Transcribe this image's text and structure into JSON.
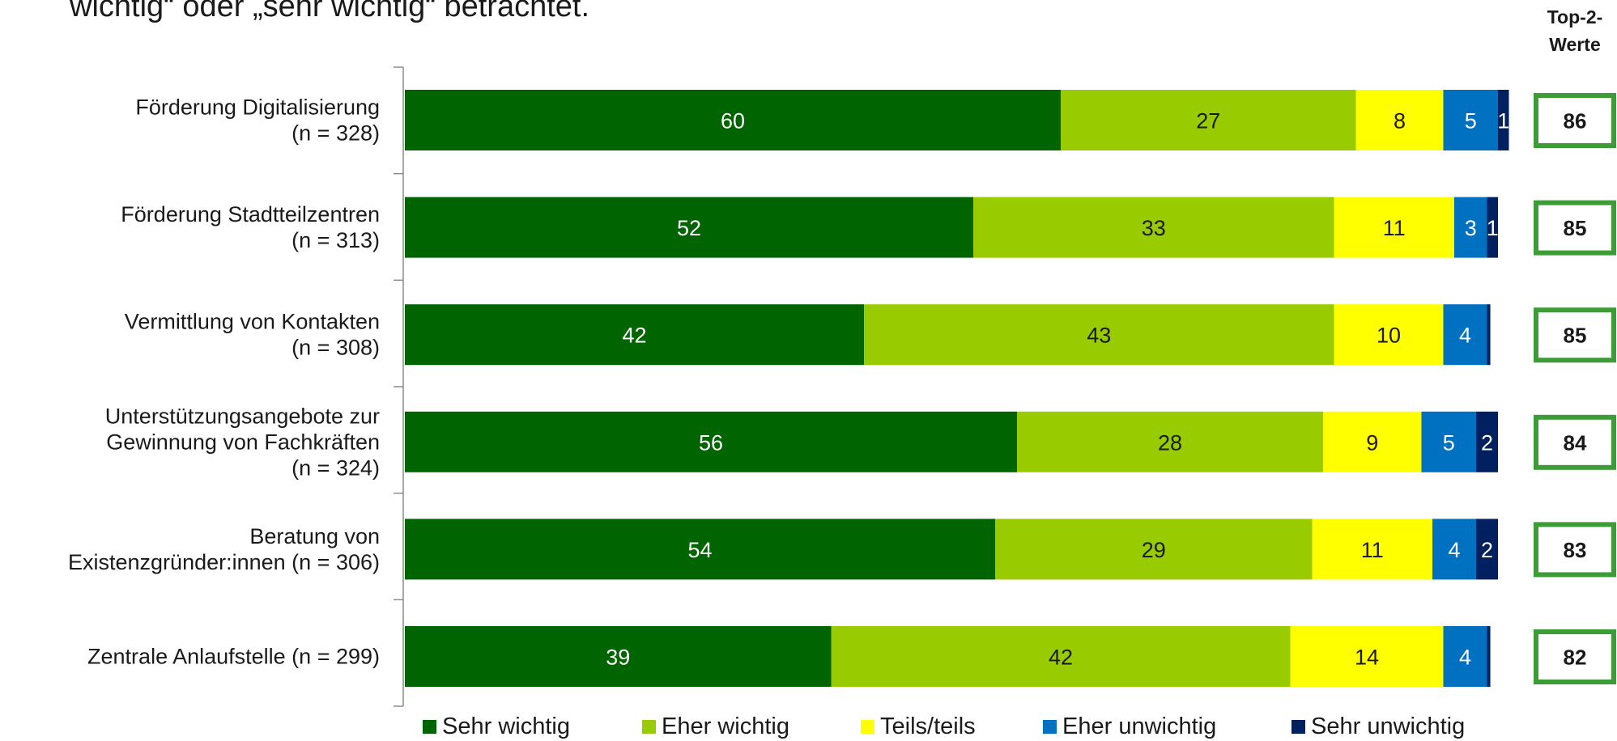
{
  "title": "wichtig“ oder „sehr wichtig“ betrachtet.",
  "top2_header": [
    "Top-2-",
    "Werte"
  ],
  "chart_data": {
    "type": "bar",
    "orientation": "horizontal",
    "stacked": true,
    "xlim": [
      0,
      100
    ],
    "categories": [
      [
        "Förderung Digitalisierung",
        "(n = 328)"
      ],
      [
        "Förderung Stadtteilzentren",
        "(n = 313)"
      ],
      [
        "Vermittlung von Kontakten",
        "(n = 308)"
      ],
      [
        "Unterstützungsangebote zur",
        "Gewinnung von Fachkräften",
        "(n = 324)"
      ],
      [
        "Beratung von",
        "Existenzgründer:innen  (n = 306)"
      ],
      [
        "Zentrale Anlaufstelle (n = 299)"
      ]
    ],
    "series": [
      {
        "name": "Sehr wichtig",
        "color": "#006400",
        "label_color": "#ffffff",
        "values": [
          60,
          52,
          42,
          56,
          54,
          39
        ]
      },
      {
        "name": "Eher wichtig",
        "color": "#99cc00",
        "label_color": "#1a1a1a",
        "values": [
          27,
          33,
          43,
          28,
          29,
          42
        ]
      },
      {
        "name": "Teils/teils",
        "color": "#ffff00",
        "label_color": "#1a1a1a",
        "values": [
          8,
          11,
          10,
          9,
          11,
          14
        ]
      },
      {
        "name": "Eher unwichtig",
        "color": "#0070c0",
        "label_color": "#ffffff",
        "values": [
          5,
          3,
          4,
          5,
          4,
          4
        ]
      },
      {
        "name": "Sehr unwichtig",
        "color": "#002060",
        "label_color": "#ffffff",
        "values": [
          1,
          1,
          0.3,
          2,
          2,
          0.3
        ]
      }
    ],
    "segment_labels": [
      [
        "60",
        "27",
        "8",
        "5",
        "1"
      ],
      [
        "52",
        "33",
        "11",
        "3",
        "1"
      ],
      [
        "42",
        "43",
        "10",
        "4",
        ""
      ],
      [
        "56",
        "28",
        "9",
        "5",
        "2"
      ],
      [
        "54",
        "29",
        "11",
        "4",
        "2"
      ],
      [
        "39",
        "42",
        "14",
        "4",
        ""
      ]
    ],
    "top2_values": [
      "86",
      "85",
      "85",
      "84",
      "83",
      "82"
    ],
    "top2_box_color": "#3c9c35",
    "legend_position": "bottom"
  }
}
